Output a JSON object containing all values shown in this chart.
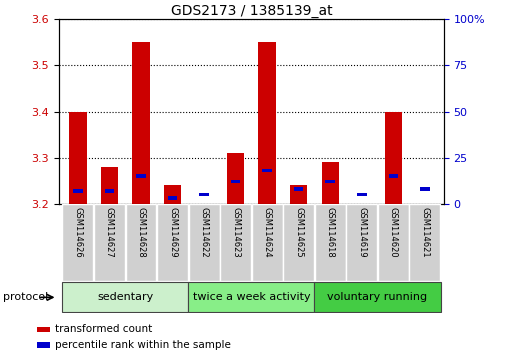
{
  "title": "GDS2173 / 1385139_at",
  "samples": [
    "GSM114626",
    "GSM114627",
    "GSM114628",
    "GSM114629",
    "GSM114622",
    "GSM114623",
    "GSM114624",
    "GSM114625",
    "GSM114618",
    "GSM114619",
    "GSM114620",
    "GSM114621"
  ],
  "red_values": [
    3.4,
    3.28,
    3.55,
    3.24,
    3.2,
    3.31,
    3.55,
    3.24,
    3.29,
    3.2,
    3.4,
    3.2
  ],
  "blue_values_pct": [
    7,
    7,
    15,
    3,
    5,
    12,
    18,
    8,
    12,
    5,
    15,
    8
  ],
  "y_min": 3.2,
  "y_max": 3.6,
  "y_ticks": [
    3.2,
    3.3,
    3.4,
    3.5,
    3.6
  ],
  "right_ticks": [
    0,
    25,
    50,
    75,
    100
  ],
  "right_tick_labels": [
    "0",
    "25",
    "50",
    "75",
    "100%"
  ],
  "groups": [
    {
      "label": "sedentary",
      "start": 0,
      "end": 4,
      "color": "#ccf0cc"
    },
    {
      "label": "twice a week activity",
      "start": 4,
      "end": 8,
      "color": "#88ee88"
    },
    {
      "label": "voluntary running",
      "start": 8,
      "end": 12,
      "color": "#44cc44"
    }
  ],
  "protocol_label": "protocol",
  "legend_red": "transformed count",
  "legend_blue": "percentile rank within the sample",
  "bar_width": 0.55,
  "red_color": "#cc0000",
  "blue_color": "#0000cc",
  "title_fontsize": 10
}
